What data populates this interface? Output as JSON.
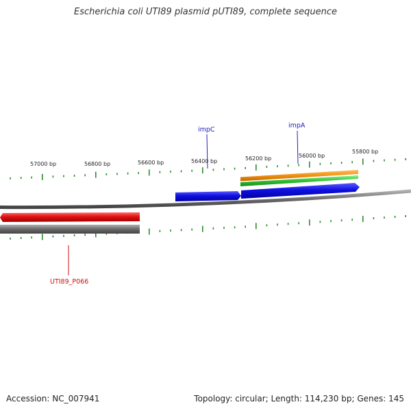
{
  "title": "Escherichia coli UTI89 plasmid pUTI89, complete sequence",
  "footer": {
    "accession": "Accession: NC_007941",
    "summary": "Topology: circular; Length: 114,230 bp; Genes: 145"
  },
  "ruler": {
    "labels": [
      "57000 bp",
      "56800 bp",
      "56600 bp",
      "56400 bp",
      "56200 bp",
      "56000 bp",
      "55800 bp"
    ]
  },
  "genes": {
    "impC": "impC",
    "impA": "impA",
    "UTI89_P066": "UTI89_P066"
  },
  "colors": {
    "tick": "#2a8a2a",
    "backbone": "#7a7a7a",
    "red_gene": "#e01010",
    "blue_gene": "#1010e0",
    "orange_gene": "#f09010",
    "green_gene": "#30c030",
    "gray_gene": "#707070",
    "label_blue": "#2020c0",
    "label_red": "#cc1010"
  }
}
